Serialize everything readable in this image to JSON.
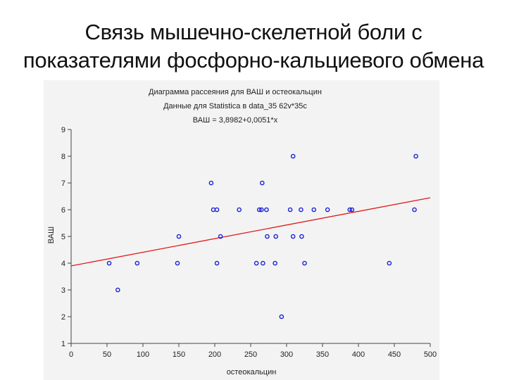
{
  "slide": {
    "title_line1": "Связь мышечно-скелетной боли с",
    "title_line2": "показателями фосфорно-кальциевого обмена"
  },
  "chart_data": {
    "type": "scatter",
    "title": "Диаграмма рассеяния для ВАШ и остеокальцин",
    "subtitle": "Данные для Statistica в data_35 62v*35c",
    "equation": "ВАШ = 3,8982+0,0051*x",
    "xlabel": "остеокальцин",
    "ylabel": "ВАШ",
    "xlim": [
      0,
      500
    ],
    "ylim": [
      1,
      9
    ],
    "xticks": [
      0,
      50,
      100,
      150,
      200,
      250,
      300,
      350,
      400,
      450,
      500
    ],
    "yticks": [
      1,
      2,
      3,
      4,
      5,
      6,
      7,
      8,
      9
    ],
    "grid": false,
    "regression": {
      "intercept": 3.8982,
      "slope": 0.0051
    },
    "colors": {
      "points": "#1a22d8",
      "line": "#e11a1a",
      "axes": "#444444",
      "panel": "#f3f3f3"
    },
    "points": [
      {
        "x": 53,
        "y": 4
      },
      {
        "x": 65,
        "y": 3
      },
      {
        "x": 92,
        "y": 4
      },
      {
        "x": 148,
        "y": 4
      },
      {
        "x": 150,
        "y": 5
      },
      {
        "x": 195,
        "y": 7
      },
      {
        "x": 198,
        "y": 6
      },
      {
        "x": 203,
        "y": 6
      },
      {
        "x": 203,
        "y": 4
      },
      {
        "x": 208,
        "y": 5
      },
      {
        "x": 234,
        "y": 6
      },
      {
        "x": 258,
        "y": 4
      },
      {
        "x": 262,
        "y": 6
      },
      {
        "x": 265,
        "y": 6
      },
      {
        "x": 266,
        "y": 7
      },
      {
        "x": 267,
        "y": 4
      },
      {
        "x": 272,
        "y": 6
      },
      {
        "x": 273,
        "y": 5
      },
      {
        "x": 284,
        "y": 4
      },
      {
        "x": 285,
        "y": 5
      },
      {
        "x": 293,
        "y": 2
      },
      {
        "x": 305,
        "y": 6
      },
      {
        "x": 309,
        "y": 8
      },
      {
        "x": 309,
        "y": 5
      },
      {
        "x": 320,
        "y": 6
      },
      {
        "x": 321,
        "y": 5
      },
      {
        "x": 325,
        "y": 4
      },
      {
        "x": 338,
        "y": 6
      },
      {
        "x": 357,
        "y": 6
      },
      {
        "x": 388,
        "y": 6
      },
      {
        "x": 391,
        "y": 6
      },
      {
        "x": 443,
        "y": 4
      },
      {
        "x": 478,
        "y": 6
      },
      {
        "x": 480,
        "y": 8
      }
    ]
  }
}
